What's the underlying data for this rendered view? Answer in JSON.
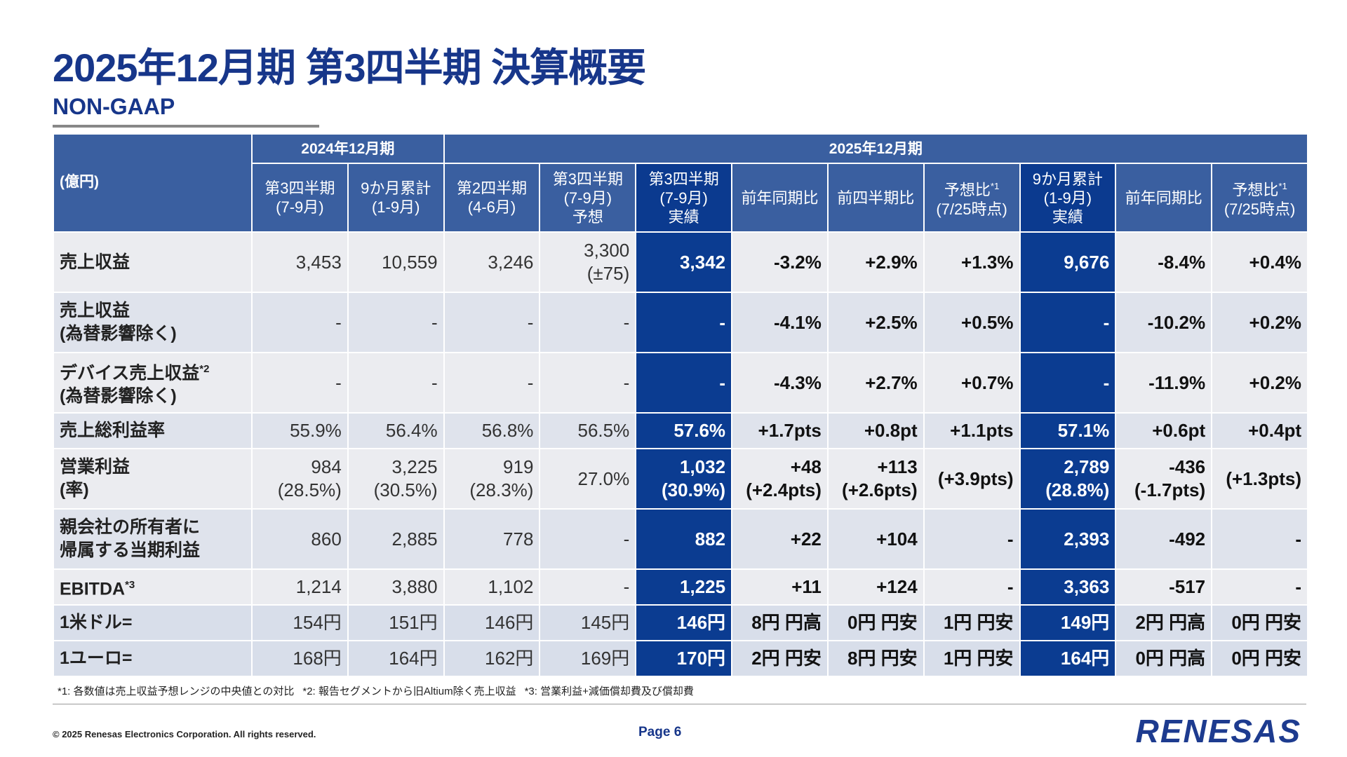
{
  "header": {
    "title": "2025年12月期 第3四半期 決算概要",
    "subtitle": "NON-GAAP"
  },
  "table": {
    "unit": "(億円)",
    "groups": [
      {
        "label": "2024年12月期",
        "columns": [
          {
            "lines": [
              "第3四半期",
              "(7-9月)"
            ]
          },
          {
            "lines": [
              "9か月累計",
              "(1-9月)"
            ]
          }
        ]
      },
      {
        "label": "2025年12月期",
        "columns": [
          {
            "lines": [
              "第2四半期",
              "(4-6月)"
            ]
          },
          {
            "lines": [
              "第3四半期",
              "(7-9月)",
              "予想"
            ]
          },
          {
            "lines": [
              "第3四半期",
              "(7-9月)",
              "実績"
            ]
          },
          {
            "lines": [
              "前年同期比"
            ]
          },
          {
            "lines": [
              "前四半期比"
            ]
          },
          {
            "lines": [
              "予想比",
              "(7/25時点)"
            ],
            "sup": "*1"
          },
          {
            "lines": [
              "9か月累計",
              "(1-9月)",
              "実績"
            ]
          },
          {
            "lines": [
              "前年同期比"
            ]
          },
          {
            "lines": [
              "予想比",
              "(7/25時点)"
            ],
            "sup": "*1"
          }
        ]
      }
    ],
    "rows": [
      {
        "label": [
          "売上収益"
        ],
        "cells": [
          [
            "3,453"
          ],
          [
            "10,559"
          ],
          [
            "3,246"
          ],
          [
            "3,300",
            "(±75)"
          ],
          [
            "3,342"
          ],
          [
            "-3.2%"
          ],
          [
            "+2.9%"
          ],
          [
            "+1.3%"
          ],
          [
            "9,676"
          ],
          [
            "-8.4%"
          ],
          [
            "+0.4%"
          ]
        ]
      },
      {
        "label": [
          "売上収益",
          "(為替影響除く)"
        ],
        "cells": [
          [
            "-"
          ],
          [
            "-"
          ],
          [
            "-"
          ],
          [
            "-"
          ],
          [
            "-"
          ],
          [
            "-4.1%"
          ],
          [
            "+2.5%"
          ],
          [
            "+0.5%"
          ],
          [
            "-"
          ],
          [
            "-10.2%"
          ],
          [
            "+0.2%"
          ]
        ]
      },
      {
        "label": [
          "デバイス売上収益",
          "(為替影響除く)"
        ],
        "sup": "*2",
        "cells": [
          [
            "-"
          ],
          [
            "-"
          ],
          [
            "-"
          ],
          [
            "-"
          ],
          [
            "-"
          ],
          [
            "-4.3%"
          ],
          [
            "+2.7%"
          ],
          [
            "+0.7%"
          ],
          [
            "-"
          ],
          [
            "-11.9%"
          ],
          [
            "+0.2%"
          ]
        ]
      },
      {
        "label": [
          "売上総利益率"
        ],
        "cells": [
          [
            "55.9%"
          ],
          [
            "56.4%"
          ],
          [
            "56.8%"
          ],
          [
            "56.5%"
          ],
          [
            "57.6%"
          ],
          [
            "+1.7pts"
          ],
          [
            "+0.8pt"
          ],
          [
            "+1.1pts"
          ],
          [
            "57.1%"
          ],
          [
            "+0.6pt"
          ],
          [
            "+0.4pt"
          ]
        ]
      },
      {
        "label": [
          "営業利益",
          "(率)"
        ],
        "cells": [
          [
            "984",
            "(28.5%)"
          ],
          [
            "3,225",
            "(30.5%)"
          ],
          [
            "919",
            "(28.3%)"
          ],
          [
            "27.0%"
          ],
          [
            "1,032",
            "(30.9%)"
          ],
          [
            "+48",
            "(+2.4pts)"
          ],
          [
            "+113",
            "(+2.6pts)"
          ],
          [
            "(+3.9pts)"
          ],
          [
            "2,789",
            "(28.8%)"
          ],
          [
            "-436",
            "(-1.7pts)"
          ],
          [
            "(+1.3pts)"
          ]
        ]
      },
      {
        "label": [
          "親会社の所有者に",
          "帰属する当期利益"
        ],
        "cells": [
          [
            "860"
          ],
          [
            "2,885"
          ],
          [
            "778"
          ],
          [
            "-"
          ],
          [
            "882"
          ],
          [
            "+22"
          ],
          [
            "+104"
          ],
          [
            "-"
          ],
          [
            "2,393"
          ],
          [
            "-492"
          ],
          [
            "-"
          ]
        ]
      },
      {
        "label": [
          "EBITDA"
        ],
        "sup": "*3",
        "cells": [
          [
            "1,214"
          ],
          [
            "3,880"
          ],
          [
            "1,102"
          ],
          [
            "-"
          ],
          [
            "1,225"
          ],
          [
            "+11"
          ],
          [
            "+124"
          ],
          [
            "-"
          ],
          [
            "3,363"
          ],
          [
            "-517"
          ],
          [
            "-"
          ]
        ]
      },
      {
        "label": [
          "1米ドル="
        ],
        "cells": [
          [
            "154円"
          ],
          [
            "151円"
          ],
          [
            "146円"
          ],
          [
            "145円"
          ],
          [
            "146円"
          ],
          [
            "8円 円高"
          ],
          [
            "0円 円安"
          ],
          [
            "1円 円安"
          ],
          [
            "149円"
          ],
          [
            "2円 円高"
          ],
          [
            "0円 円安"
          ]
        ]
      },
      {
        "label": [
          "1ユーロ="
        ],
        "cells": [
          [
            "168円"
          ],
          [
            "164円"
          ],
          [
            "162円"
          ],
          [
            "169円"
          ],
          [
            "170円"
          ],
          [
            "2円 円安"
          ],
          [
            "8円 円安"
          ],
          [
            "1円 円安"
          ],
          [
            "164円"
          ],
          [
            "0円 円高"
          ],
          [
            "0円 円安"
          ]
        ]
      }
    ]
  },
  "footnotes": [
    "*1: 各数値は売上収益予想レンジの中央値との対比",
    "*2: 報告セグメントから旧Altium除く売上収益",
    "*3: 営業利益+減価償却費及び償却費"
  ],
  "footer": {
    "copyright": "© 2025 Renesas Electronics Corporation. All rights reserved.",
    "page": "Page 6",
    "logo": "RENESAS"
  }
}
